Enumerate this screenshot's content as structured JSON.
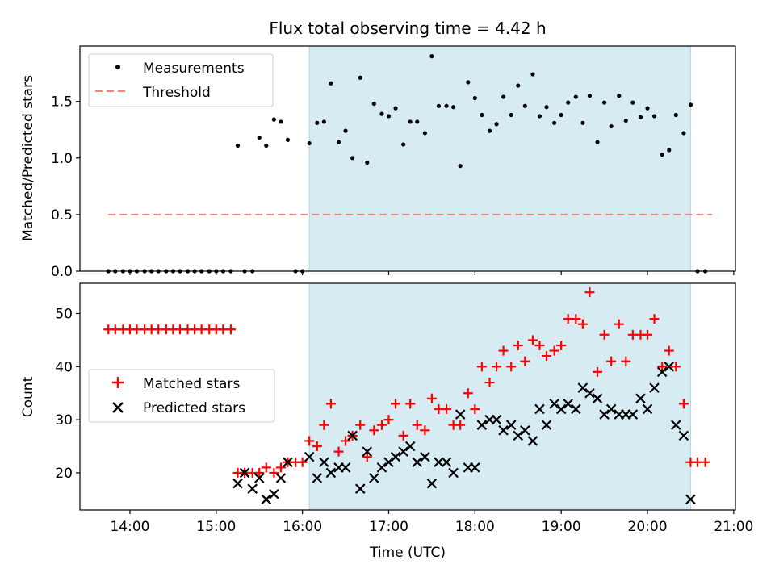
{
  "title": "Flux total observing time = 4.42 h",
  "xlabel": "Time (UTC)",
  "x_ticks": [
    "14:00",
    "15:00",
    "16:00",
    "17:00",
    "18:00",
    "19:00",
    "20:00",
    "21:00"
  ],
  "x_tick_hours": [
    14,
    15,
    16,
    17,
    18,
    19,
    20,
    21
  ],
  "colors": {
    "measurements": "#000000",
    "threshold": "#ff7f7f",
    "matched": "#ff0000",
    "predicted": "#000000",
    "span": "#add8e6"
  },
  "chart_data": [
    {
      "type": "scatter",
      "ylabel": "Matched/Predicted stars",
      "xlim": [
        13.42,
        21.02
      ],
      "ylim": [
        0.0,
        1.99
      ],
      "y_ticks": [
        "0.0",
        "0.5",
        "1.0",
        "1.5"
      ],
      "y_tick_values": [
        0.0,
        0.5,
        1.0,
        1.5
      ],
      "legend": {
        "position": "upper left",
        "entries": [
          "Measurements",
          "Threshold"
        ]
      },
      "shaded_span": [
        16.08,
        20.5
      ],
      "threshold": {
        "name": "Threshold",
        "value": 0.5,
        "x": [
          13.75,
          20.75
        ],
        "style": "dashed"
      },
      "series": [
        {
          "name": "Measurements",
          "x": [
            13.75,
            13.83,
            13.92,
            14.0,
            14.08,
            14.17,
            14.25,
            14.33,
            14.42,
            14.5,
            14.58,
            14.67,
            14.75,
            14.83,
            14.92,
            15.0,
            15.08,
            15.17,
            15.25,
            15.33,
            15.42,
            15.5,
            15.58,
            15.67,
            15.75,
            15.83,
            15.92,
            16.0,
            16.08,
            16.17,
            16.25,
            16.33,
            16.42,
            16.5,
            16.58,
            16.67,
            16.75,
            16.83,
            16.92,
            17.0,
            17.08,
            17.17,
            17.25,
            17.33,
            17.42,
            17.5,
            17.58,
            17.67,
            17.75,
            17.83,
            17.92,
            18.0,
            18.08,
            18.17,
            18.25,
            18.33,
            18.42,
            18.5,
            18.58,
            18.67,
            18.75,
            18.83,
            18.92,
            19.0,
            19.08,
            19.17,
            19.25,
            19.33,
            19.42,
            19.5,
            19.58,
            19.67,
            19.75,
            19.83,
            19.92,
            20.0,
            20.08,
            20.17,
            20.25,
            20.33,
            20.42,
            20.5,
            20.58,
            20.67
          ],
          "y": [
            0,
            0,
            0,
            0,
            0,
            0,
            0,
            0,
            0,
            0,
            0,
            0,
            0,
            0,
            0,
            0,
            0,
            0,
            1.11,
            0,
            0,
            1.18,
            1.11,
            1.34,
            1.32,
            1.16,
            0,
            0,
            1.13,
            1.31,
            1.32,
            1.66,
            1.14,
            1.24,
            1.0,
            1.71,
            0.96,
            1.48,
            1.39,
            1.37,
            1.44,
            1.12,
            1.32,
            1.32,
            1.22,
            1.9,
            1.46,
            1.46,
            1.45,
            0.93,
            1.67,
            1.53,
            1.38,
            1.24,
            1.3,
            1.54,
            1.38,
            1.64,
            1.46,
            1.74,
            1.37,
            1.45,
            1.31,
            1.38,
            1.49,
            1.54,
            1.31,
            1.55,
            1.14,
            1.49,
            1.28,
            1.55,
            1.33,
            1.49,
            1.36,
            1.44,
            1.37,
            1.03,
            1.07,
            1.38,
            1.22,
            1.47,
            0,
            0
          ]
        }
      ]
    },
    {
      "type": "scatter",
      "ylabel": "Count",
      "xlim": [
        13.42,
        21.02
      ],
      "ylim": [
        13.0,
        55.7
      ],
      "y_ticks": [
        "20",
        "30",
        "40",
        "50"
      ],
      "y_tick_values": [
        20,
        30,
        40,
        50
      ],
      "legend": {
        "position": "center left",
        "entries": [
          "Matched stars",
          "Predicted stars"
        ]
      },
      "shaded_span": [
        16.08,
        20.5
      ],
      "series": [
        {
          "name": "Matched stars",
          "x": [
            13.75,
            13.83,
            13.92,
            14.0,
            14.08,
            14.17,
            14.25,
            14.33,
            14.42,
            14.5,
            14.58,
            14.67,
            14.75,
            14.83,
            14.92,
            15.0,
            15.08,
            15.17,
            15.25,
            15.33,
            15.42,
            15.5,
            15.58,
            15.67,
            15.75,
            15.83,
            15.92,
            16.0,
            16.08,
            16.17,
            16.25,
            16.33,
            16.42,
            16.5,
            16.58,
            16.67,
            16.75,
            16.83,
            16.92,
            17.0,
            17.08,
            17.17,
            17.25,
            17.33,
            17.42,
            17.5,
            17.58,
            17.67,
            17.75,
            17.83,
            17.92,
            18.0,
            18.08,
            18.17,
            18.25,
            18.33,
            18.42,
            18.5,
            18.58,
            18.67,
            18.75,
            18.83,
            18.92,
            19.0,
            19.08,
            19.17,
            19.25,
            19.33,
            19.42,
            19.5,
            19.58,
            19.67,
            19.75,
            19.83,
            19.92,
            20.0,
            20.08,
            20.17,
            20.25,
            20.33,
            20.42,
            20.5,
            20.58,
            20.67
          ],
          "y": [
            47,
            47,
            47,
            47,
            47,
            47,
            47,
            47,
            47,
            47,
            47,
            47,
            47,
            47,
            47,
            47,
            47,
            47,
            20,
            20,
            20,
            20,
            21,
            20,
            21,
            22,
            22,
            22,
            26,
            25,
            29,
            33,
            24,
            26,
            27,
            29,
            23,
            28,
            29,
            30,
            33,
            27,
            33,
            29,
            28,
            34,
            32,
            32,
            29,
            29,
            35,
            32,
            40,
            37,
            40,
            43,
            40,
            44,
            41,
            45,
            44,
            42,
            43,
            44,
            49,
            49,
            48,
            54,
            39,
            46,
            41,
            48,
            41,
            46,
            46,
            46,
            49,
            40,
            43,
            40,
            33,
            22,
            22,
            22
          ]
        },
        {
          "name": "Predicted stars",
          "x": [
            15.25,
            15.33,
            15.42,
            15.5,
            15.58,
            15.67,
            15.75,
            15.83,
            16.08,
            16.17,
            16.25,
            16.33,
            16.42,
            16.5,
            16.58,
            16.67,
            16.75,
            16.83,
            16.92,
            17.0,
            17.08,
            17.17,
            17.25,
            17.33,
            17.42,
            17.5,
            17.58,
            17.67,
            17.75,
            17.83,
            17.92,
            18.0,
            18.08,
            18.17,
            18.25,
            18.33,
            18.42,
            18.5,
            18.58,
            18.67,
            18.75,
            18.83,
            18.92,
            19.0,
            19.08,
            19.17,
            19.25,
            19.33,
            19.42,
            19.5,
            19.58,
            19.67,
            19.75,
            19.83,
            19.92,
            20.0,
            20.08,
            20.17,
            20.25,
            20.33,
            20.42,
            20.5
          ],
          "y": [
            18,
            20,
            17,
            19,
            15,
            16,
            19,
            22,
            23,
            19,
            22,
            20,
            21,
            21,
            27,
            17,
            24,
            19,
            21,
            22,
            23,
            24,
            25,
            22,
            23,
            18,
            22,
            22,
            20,
            31,
            21,
            21,
            29,
            30,
            30,
            28,
            29,
            27,
            28,
            26,
            32,
            29,
            33,
            32,
            33,
            32,
            36,
            35,
            34,
            31,
            32,
            31,
            31,
            31,
            34,
            32,
            36,
            39,
            40,
            29,
            27,
            15
          ]
        }
      ]
    }
  ]
}
